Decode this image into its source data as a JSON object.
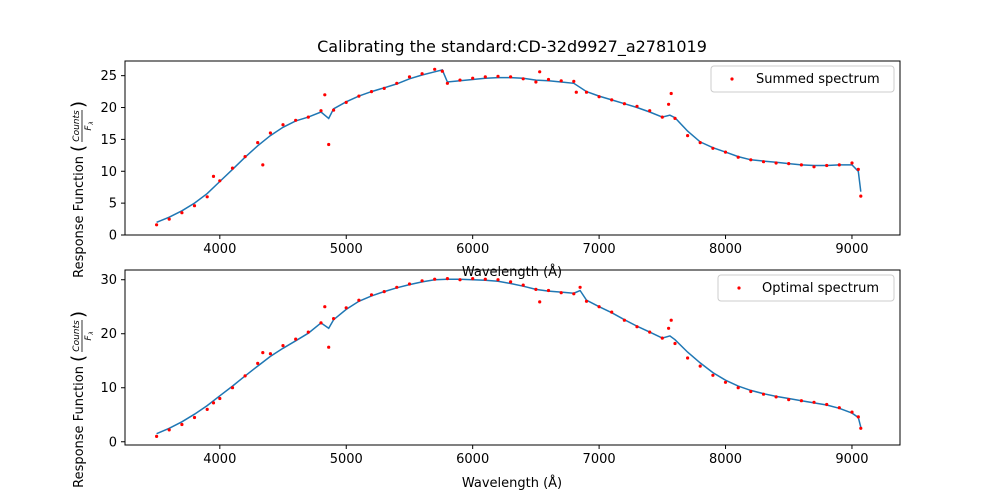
{
  "colors": {
    "points": "#ff0000",
    "fit": "#1f77b4",
    "axes": "#000000",
    "legend_border": "#cccccc"
  },
  "chart_data": [
    {
      "type": "scatter",
      "title": "Calibrating the standard:CD-32d9927_a2781019",
      "xlabel": "Wavelength (Å)",
      "ylabel": "Response Function (Counts / F_λ)",
      "ylabel_text": "Response Function",
      "ylabel_frac_num": "Counts",
      "ylabel_frac_den": "F",
      "ylabel_frac_sub": "λ",
      "xlim": [
        3250,
        9380
      ],
      "ylim": [
        0,
        27.3
      ],
      "x_ticks": [
        4000,
        5000,
        6000,
        7000,
        8000,
        9000
      ],
      "y_ticks": [
        0,
        5,
        10,
        15,
        20,
        25
      ],
      "legend": {
        "label": "Summed spectrum",
        "placement": "top-right"
      },
      "grid": false,
      "series": [
        {
          "name": "Summed spectrum",
          "kind": "points",
          "x": [
            3500,
            3600,
            3700,
            3800,
            3900,
            3950,
            4000,
            4100,
            4200,
            4300,
            4340,
            4400,
            4500,
            4600,
            4700,
            4800,
            4830,
            4861,
            4900,
            5000,
            5100,
            5200,
            5300,
            5400,
            5500,
            5600,
            5700,
            5760,
            5800,
            5900,
            6000,
            6100,
            6200,
            6300,
            6400,
            6500,
            6530,
            6600,
            6700,
            6800,
            6820,
            6900,
            7000,
            7100,
            7200,
            7300,
            7400,
            7500,
            7550,
            7570,
            7600,
            7700,
            7800,
            7900,
            8000,
            8100,
            8200,
            8300,
            8400,
            8500,
            8600,
            8700,
            8800,
            8900,
            9000,
            9050,
            9070
          ],
          "y": [
            1.6,
            2.5,
            3.5,
            4.6,
            6.0,
            9.2,
            8.5,
            10.5,
            12.3,
            14.5,
            11.0,
            16.0,
            17.3,
            18.0,
            18.5,
            19.5,
            22.0,
            14.2,
            19.6,
            20.8,
            21.8,
            22.5,
            23.0,
            23.8,
            24.8,
            25.3,
            26.0,
            25.7,
            23.8,
            24.3,
            24.6,
            24.8,
            24.9,
            24.8,
            24.5,
            24.0,
            25.6,
            24.4,
            24.2,
            24.1,
            22.4,
            22.4,
            21.7,
            21.2,
            20.6,
            20.2,
            19.5,
            18.5,
            20.5,
            22.2,
            18.3,
            15.6,
            14.5,
            13.6,
            13.0,
            12.2,
            11.8,
            11.5,
            11.3,
            11.2,
            11.0,
            10.7,
            10.9,
            11.0,
            11.3,
            10.3,
            6.1
          ]
        },
        {
          "name": "",
          "kind": "line",
          "x": [
            3500,
            3600,
            3700,
            3800,
            3900,
            4000,
            4100,
            4200,
            4300,
            4400,
            4500,
            4600,
            4700,
            4800,
            4861,
            4900,
            5000,
            5100,
            5200,
            5300,
            5400,
            5500,
            5600,
            5700,
            5760,
            5800,
            5900,
            6000,
            6100,
            6200,
            6300,
            6400,
            6500,
            6600,
            6700,
            6800,
            6900,
            7000,
            7100,
            7200,
            7300,
            7400,
            7500,
            7560,
            7600,
            7700,
            7800,
            7900,
            8000,
            8100,
            8200,
            8300,
            8400,
            8500,
            8600,
            8700,
            8800,
            8900,
            9000,
            9050,
            9070
          ],
          "y": [
            2.0,
            2.8,
            3.8,
            5.0,
            6.5,
            8.4,
            10.3,
            12.2,
            14.0,
            15.6,
            16.9,
            17.9,
            18.5,
            19.3,
            18.3,
            19.8,
            20.9,
            21.8,
            22.5,
            23.1,
            23.7,
            24.5,
            25.1,
            25.6,
            25.9,
            24.0,
            24.2,
            24.4,
            24.6,
            24.7,
            24.7,
            24.6,
            24.3,
            24.2,
            24.0,
            23.8,
            22.5,
            21.8,
            21.2,
            20.6,
            20.0,
            19.3,
            18.5,
            18.8,
            18.4,
            16.3,
            14.6,
            13.7,
            13.0,
            12.3,
            11.8,
            11.6,
            11.4,
            11.2,
            11.0,
            10.9,
            10.9,
            11.0,
            11.0,
            10.0,
            6.8
          ]
        }
      ]
    },
    {
      "type": "scatter",
      "title": "",
      "xlabel": "Wavelength (Å)",
      "ylabel": "Response Function (Counts / F_λ)",
      "ylabel_text": "Response Function",
      "ylabel_frac_num": "Counts",
      "ylabel_frac_den": "F",
      "ylabel_frac_sub": "λ",
      "xlim": [
        3250,
        9380
      ],
      "ylim": [
        -0.6,
        31.8
      ],
      "x_ticks": [
        4000,
        5000,
        6000,
        7000,
        8000,
        9000
      ],
      "y_ticks": [
        0,
        10,
        20,
        30
      ],
      "legend": {
        "label": "Optimal spectrum",
        "placement": "top-right"
      },
      "grid": false,
      "series": [
        {
          "name": "Optimal spectrum",
          "kind": "points",
          "x": [
            3500,
            3600,
            3700,
            3800,
            3900,
            3950,
            4000,
            4100,
            4200,
            4300,
            4340,
            4400,
            4500,
            4600,
            4700,
            4800,
            4830,
            4861,
            4900,
            5000,
            5100,
            5200,
            5300,
            5400,
            5500,
            5600,
            5700,
            5800,
            5900,
            6000,
            6100,
            6200,
            6300,
            6400,
            6500,
            6530,
            6600,
            6700,
            6800,
            6850,
            6900,
            7000,
            7100,
            7200,
            7300,
            7400,
            7500,
            7550,
            7570,
            7600,
            7700,
            7800,
            7900,
            8000,
            8100,
            8200,
            8300,
            8400,
            8500,
            8600,
            8700,
            8800,
            8900,
            9000,
            9050,
            9070
          ],
          "y": [
            1.0,
            2.2,
            3.2,
            4.5,
            6.0,
            7.2,
            8.0,
            10.0,
            12.2,
            14.5,
            16.5,
            16.3,
            17.8,
            19.0,
            20.3,
            22.0,
            25.0,
            17.5,
            22.8,
            24.8,
            26.2,
            27.2,
            27.8,
            28.6,
            29.2,
            29.8,
            30.1,
            30.2,
            30.0,
            30.2,
            30.1,
            30.0,
            29.6,
            29.0,
            28.2,
            25.9,
            28.0,
            27.6,
            27.4,
            28.6,
            26.0,
            25.0,
            24.0,
            22.5,
            21.3,
            20.3,
            19.2,
            21.0,
            22.5,
            18.2,
            15.5,
            14.0,
            12.3,
            11.0,
            10.0,
            9.3,
            8.8,
            8.3,
            7.8,
            7.6,
            7.3,
            6.9,
            6.3,
            5.5,
            4.6,
            2.5
          ]
        },
        {
          "name": "",
          "kind": "line",
          "x": [
            3500,
            3600,
            3700,
            3800,
            3900,
            4000,
            4100,
            4200,
            4300,
            4400,
            4500,
            4600,
            4700,
            4800,
            4861,
            4900,
            5000,
            5100,
            5200,
            5300,
            5400,
            5500,
            5600,
            5700,
            5800,
            5900,
            6000,
            6100,
            6200,
            6300,
            6400,
            6500,
            6600,
            6700,
            6800,
            6850,
            6900,
            7000,
            7100,
            7200,
            7300,
            7400,
            7500,
            7560,
            7600,
            7700,
            7800,
            7900,
            8000,
            8100,
            8200,
            8300,
            8400,
            8500,
            8600,
            8700,
            8800,
            8900,
            9000,
            9050,
            9070
          ],
          "y": [
            1.5,
            2.5,
            3.7,
            5.1,
            6.7,
            8.5,
            10.3,
            12.2,
            14.0,
            15.8,
            17.3,
            18.7,
            20.1,
            22.0,
            21.0,
            22.6,
            24.5,
            26.0,
            27.0,
            27.8,
            28.5,
            29.1,
            29.6,
            30.0,
            30.1,
            30.1,
            30.0,
            29.9,
            29.7,
            29.3,
            28.8,
            28.2,
            27.9,
            27.7,
            27.5,
            28.0,
            26.2,
            25.0,
            23.9,
            22.6,
            21.4,
            20.3,
            19.2,
            19.6,
            18.9,
            16.6,
            14.6,
            12.8,
            11.4,
            10.3,
            9.5,
            8.9,
            8.4,
            8.0,
            7.6,
            7.2,
            6.8,
            6.2,
            5.3,
            4.5,
            2.7
          ]
        }
      ]
    }
  ]
}
